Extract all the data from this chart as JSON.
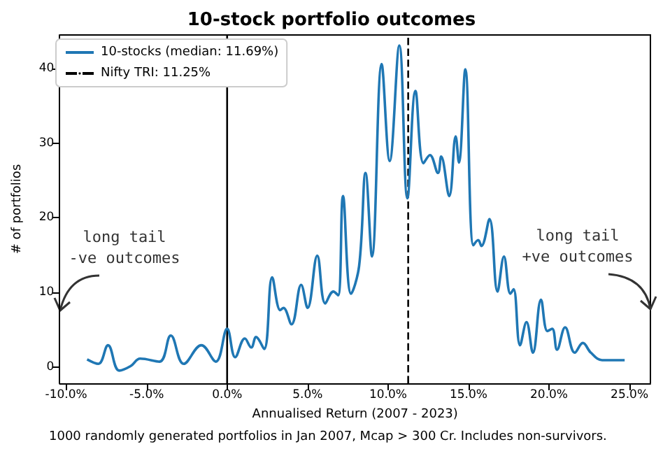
{
  "chart_data": {
    "type": "line",
    "title": "10-stock portfolio outcomes",
    "xlabel": "Annualised Return (2007 - 2023)",
    "ylabel": "# of portfolios",
    "x": [
      -8.7,
      -8.0,
      -7.4,
      -6.7,
      -6.0,
      -5.4,
      -4.2,
      -3.5,
      -2.7,
      -1.6,
      -0.7,
      0.0,
      0.5,
      1.1,
      1.5,
      1.8,
      2.3,
      2.8,
      3.3,
      3.5,
      4.0,
      4.6,
      5.0,
      5.6,
      6.1,
      6.6,
      6.9,
      7.2,
      7.7,
      8.2,
      8.6,
      9.0,
      9.6,
      10.1,
      10.7,
      11.2,
      11.7,
      12.2,
      12.6,
      13.1,
      13.3,
      13.8,
      14.2,
      14.4,
      14.8,
      15.3,
      15.6,
      15.8,
      16.3,
      16.8,
      17.2,
      17.6,
      17.8,
      18.2,
      18.6,
      19.0,
      19.5,
      19.9,
      20.2,
      20.5,
      21.0,
      21.6,
      22.1,
      22.6,
      23.3,
      24.7
    ],
    "series": [
      {
        "name": "10-stocks (median: 11.69%)",
        "color": "#1f77b4",
        "values": [
          1.0,
          0.4,
          2.9,
          -0.5,
          0.1,
          1.1,
          0.7,
          4.2,
          0.4,
          2.9,
          0.7,
          5.1,
          1.3,
          3.8,
          2.6,
          4.0,
          2.4,
          12.0,
          7.6,
          7.9,
          5.7,
          11.0,
          7.9,
          14.9,
          8.5,
          10.1,
          9.6,
          22.9,
          9.8,
          13.5,
          26.0,
          14.8,
          40.6,
          27.6,
          43.1,
          22.6,
          37.0,
          27.3,
          28.4,
          26.0,
          28.2,
          22.9,
          30.9,
          27.4,
          39.9,
          16.3,
          17.0,
          16.2,
          19.8,
          10.1,
          14.8,
          9.8,
          10.4,
          2.9,
          6.0,
          1.9,
          9.0,
          4.8,
          5.1,
          2.3,
          5.3,
          1.9,
          3.2,
          1.9,
          0.9,
          0.9
        ]
      }
    ],
    "ref_lines": [
      {
        "axis": "x",
        "value": 0,
        "color": "#000000",
        "line_style": "solid"
      },
      {
        "axis": "x",
        "value": 11.25,
        "label": "Nifty TRI: 11.25%",
        "color": "#000000",
        "line_style": "dashed"
      }
    ],
    "xlim": [
      -10.4,
      26.3
    ],
    "ylim": [
      -2.2,
      44.5
    ],
    "xticks": [
      {
        "value": -10,
        "label": "-10.0%"
      },
      {
        "value": -5,
        "label": "-5.0%"
      },
      {
        "value": 0,
        "label": "0.0%"
      },
      {
        "value": 5,
        "label": "5.0%"
      },
      {
        "value": 10,
        "label": "10.0%"
      },
      {
        "value": 15,
        "label": "15.0%"
      },
      {
        "value": 20,
        "label": "20.0%"
      },
      {
        "value": 25,
        "label": "25.0%"
      }
    ],
    "yticks": [
      0,
      10,
      20,
      30,
      40
    ],
    "grid": false,
    "legend": "top left",
    "marker": "none",
    "line_style": "solid",
    "annotations": [
      "long tail\n-ve outcomes",
      "long tail\n+ve outcomes",
      "1000 randomly generated portfolios in Jan 2007, Mcap > 300 Cr. Includes non-survivors."
    ]
  }
}
